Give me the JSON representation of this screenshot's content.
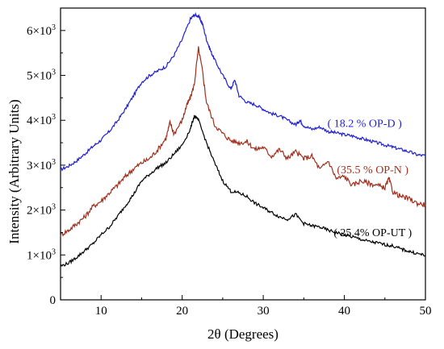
{
  "chart_data": {
    "type": "line",
    "xlabel": "2θ (Degrees)",
    "ylabel": "Intensity (Arbitrary Units)",
    "xlim": [
      5,
      50
    ],
    "ylim": [
      0,
      6500
    ],
    "x_ticks": [
      10,
      20,
      30,
      40,
      50
    ],
    "x_tick_labels": [
      "10",
      "20",
      "30",
      "40",
      "50"
    ],
    "y_ticks": [
      0,
      1000,
      2000,
      3000,
      4000,
      5000,
      6000
    ],
    "y_tick_labels": [
      {
        "base": "0",
        "exp": ""
      },
      {
        "base": "1×10",
        "exp": "3"
      },
      {
        "base": "2×10",
        "exp": "3"
      },
      {
        "base": "3×10",
        "exp": "3"
      },
      {
        "base": "4×10",
        "exp": "3"
      },
      {
        "base": "5×10",
        "exp": "3"
      },
      {
        "base": "6×10",
        "exp": "3"
      }
    ],
    "series": [
      {
        "name": "( 18.2 %  OP-D )",
        "color": "#1f1fd6",
        "label_at": [
          42.5,
          3850
        ],
        "points": [
          [
            5,
            2900
          ],
          [
            6,
            2980
          ],
          [
            7,
            3100
          ],
          [
            8,
            3250
          ],
          [
            9,
            3420
          ],
          [
            10,
            3560
          ],
          [
            11,
            3750
          ],
          [
            12,
            3980
          ],
          [
            13,
            4250
          ],
          [
            14,
            4550
          ],
          [
            15,
            4850
          ],
          [
            16,
            5000
          ],
          [
            17,
            5100
          ],
          [
            18,
            5200
          ],
          [
            19,
            5450
          ],
          [
            20,
            5800
          ],
          [
            21,
            6250
          ],
          [
            21.5,
            6350
          ],
          [
            22,
            6320
          ],
          [
            22.5,
            6150
          ],
          [
            23,
            5800
          ],
          [
            23.5,
            5550
          ],
          [
            24,
            5350
          ],
          [
            25,
            5000
          ],
          [
            26,
            4700
          ],
          [
            26.5,
            4900
          ],
          [
            27,
            4550
          ],
          [
            28,
            4400
          ],
          [
            29,
            4350
          ],
          [
            30,
            4250
          ],
          [
            31,
            4150
          ],
          [
            32,
            4100
          ],
          [
            33,
            4000
          ],
          [
            34,
            3900
          ],
          [
            34.5,
            4000
          ],
          [
            35,
            3880
          ],
          [
            36,
            3800
          ],
          [
            37,
            3850
          ],
          [
            38,
            3750
          ],
          [
            39,
            3720
          ],
          [
            40,
            3680
          ],
          [
            41,
            3650
          ],
          [
            42,
            3600
          ],
          [
            43,
            3550
          ],
          [
            44,
            3500
          ],
          [
            45,
            3450
          ],
          [
            46,
            3400
          ],
          [
            47,
            3350
          ],
          [
            48,
            3300
          ],
          [
            49,
            3230
          ],
          [
            50,
            3210
          ]
        ]
      },
      {
        "name": "(35.5 % OP-N )",
        "color": "#a0301e",
        "label_at": [
          43.5,
          2820
        ],
        "points": [
          [
            5,
            1450
          ],
          [
            6,
            1550
          ],
          [
            7,
            1700
          ],
          [
            8,
            1850
          ],
          [
            9,
            2080
          ],
          [
            10,
            2200
          ],
          [
            11,
            2380
          ],
          [
            12,
            2550
          ],
          [
            13,
            2750
          ],
          [
            14,
            2920
          ],
          [
            15,
            3050
          ],
          [
            16,
            3150
          ],
          [
            17,
            3350
          ],
          [
            18,
            3600
          ],
          [
            18.5,
            3950
          ],
          [
            19,
            3700
          ],
          [
            20,
            4000
          ],
          [
            20.5,
            4300
          ],
          [
            21,
            4500
          ],
          [
            21.5,
            4800
          ],
          [
            22,
            5600
          ],
          [
            22.5,
            5100
          ],
          [
            23,
            4400
          ],
          [
            24,
            3900
          ],
          [
            25,
            3700
          ],
          [
            26,
            3550
          ],
          [
            27,
            3500
          ],
          [
            28,
            3520
          ],
          [
            29,
            3350
          ],
          [
            30,
            3400
          ],
          [
            31,
            3200
          ],
          [
            32,
            3350
          ],
          [
            33,
            3150
          ],
          [
            34,
            3300
          ],
          [
            35,
            3150
          ],
          [
            36,
            3200
          ],
          [
            37,
            2900
          ],
          [
            38,
            3100
          ],
          [
            39,
            2700
          ],
          [
            40,
            2750
          ],
          [
            41,
            2550
          ],
          [
            42,
            2650
          ],
          [
            43,
            2600
          ],
          [
            44,
            2550
          ],
          [
            45,
            2500
          ],
          [
            45.5,
            2700
          ],
          [
            46,
            2400
          ],
          [
            47,
            2300
          ],
          [
            48,
            2250
          ],
          [
            49,
            2150
          ],
          [
            50,
            2120
          ]
        ]
      },
      {
        "name": "( 25.4% OP-UT )",
        "color": "#000000",
        "label_at": [
          43.5,
          1420
        ],
        "points": [
          [
            5,
            750
          ],
          [
            6,
            820
          ],
          [
            7,
            950
          ],
          [
            8,
            1100
          ],
          [
            9,
            1250
          ],
          [
            10,
            1450
          ],
          [
            11,
            1620
          ],
          [
            12,
            1850
          ],
          [
            13,
            2100
          ],
          [
            14,
            2350
          ],
          [
            15,
            2650
          ],
          [
            16,
            2800
          ],
          [
            17,
            2950
          ],
          [
            18,
            3050
          ],
          [
            19,
            3250
          ],
          [
            20,
            3450
          ],
          [
            21,
            3800
          ],
          [
            21.5,
            4100
          ],
          [
            22,
            4000
          ],
          [
            23,
            3500
          ],
          [
            24,
            3050
          ],
          [
            25,
            2650
          ],
          [
            26,
            2420
          ],
          [
            27,
            2380
          ],
          [
            28,
            2300
          ],
          [
            29,
            2150
          ],
          [
            30,
            2050
          ],
          [
            31,
            1950
          ],
          [
            32,
            1850
          ],
          [
            33,
            1800
          ],
          [
            34,
            1900
          ],
          [
            35,
            1700
          ],
          [
            36,
            1650
          ],
          [
            37,
            1620
          ],
          [
            38,
            1550
          ],
          [
            39,
            1500
          ],
          [
            40,
            1450
          ],
          [
            41,
            1400
          ],
          [
            42,
            1350
          ],
          [
            43,
            1300
          ],
          [
            44,
            1270
          ],
          [
            45,
            1230
          ],
          [
            46,
            1200
          ],
          [
            47,
            1130
          ],
          [
            48,
            1080
          ],
          [
            49,
            1030
          ],
          [
            50,
            990
          ]
        ]
      }
    ]
  }
}
